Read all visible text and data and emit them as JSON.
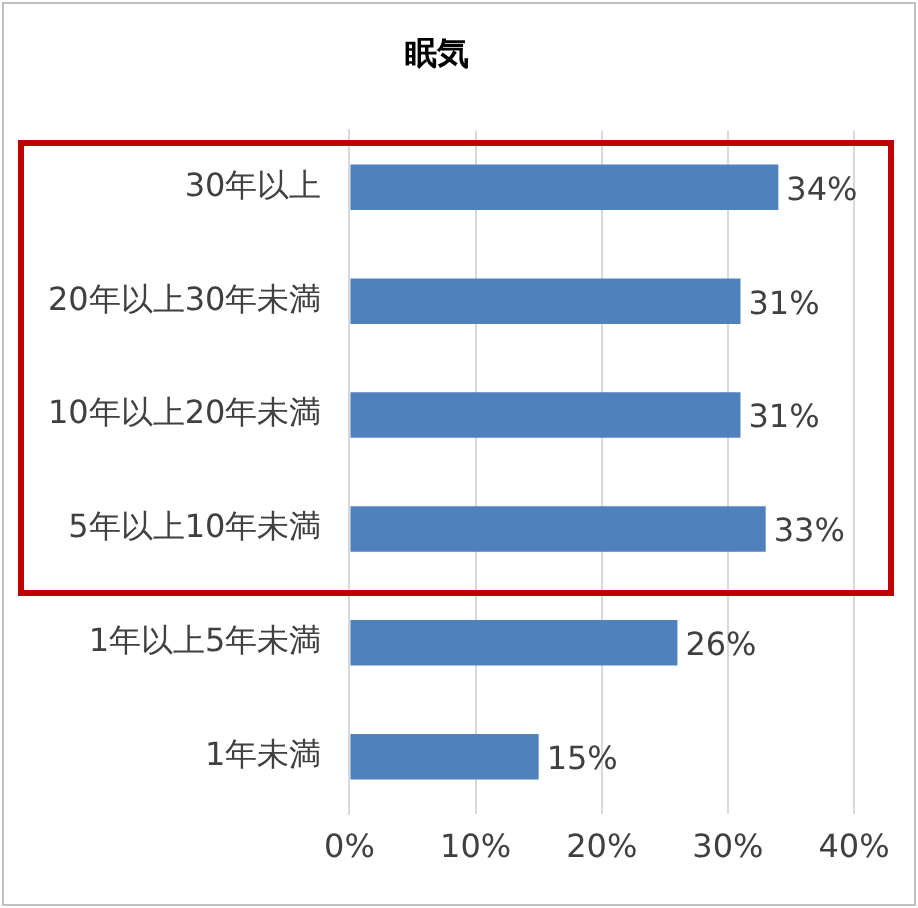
{
  "chart_data": {
    "type": "bar",
    "orientation": "horizontal",
    "title": "眠気",
    "categories": [
      "30年以上",
      "20年以上30年未満",
      "10年以上20年未満",
      "5年以上10年未満",
      "1年以上5年未満",
      "1年未満"
    ],
    "values": [
      34,
      31,
      31,
      33,
      26,
      15
    ],
    "value_labels": [
      "34%",
      "31%",
      "31%",
      "33%",
      "26%",
      "15%"
    ],
    "color": "#4f81bd",
    "xlim": [
      0,
      40
    ],
    "xticks": [
      {
        "value": 0,
        "label": "0%"
      },
      {
        "value": 10,
        "label": "10%"
      },
      {
        "value": 20,
        "label": "20%"
      },
      {
        "value": 30,
        "label": "30%"
      },
      {
        "value": 40,
        "label": "40%"
      }
    ],
    "grid": "x",
    "legend": false
  }
}
